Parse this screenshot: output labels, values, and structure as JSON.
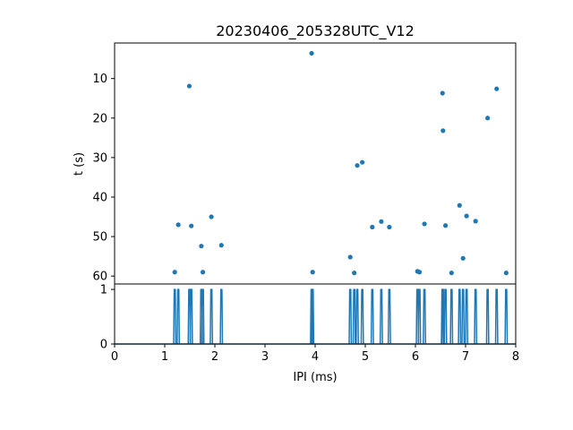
{
  "chart_data": [
    {
      "type": "scatter",
      "title": "20230406_205328UTC_V12",
      "xlabel": "",
      "ylabel": "t (s)",
      "xlim": [
        0,
        8
      ],
      "ylim": [
        62,
        1
      ],
      "y_inverted": true,
      "yticks": [
        10,
        20,
        30,
        40,
        50,
        60
      ],
      "grid": false,
      "marker_color": "#1f77b4",
      "points": [
        {
          "x": 1.2,
          "y": 59.0
        },
        {
          "x": 1.27,
          "y": 47.0
        },
        {
          "x": 1.49,
          "y": 11.9
        },
        {
          "x": 1.53,
          "y": 47.3
        },
        {
          "x": 1.73,
          "y": 52.4
        },
        {
          "x": 1.76,
          "y": 59.0
        },
        {
          "x": 1.93,
          "y": 45.0
        },
        {
          "x": 2.13,
          "y": 52.2
        },
        {
          "x": 3.93,
          "y": 3.6
        },
        {
          "x": 3.95,
          "y": 59.0
        },
        {
          "x": 4.7,
          "y": 55.2
        },
        {
          "x": 4.78,
          "y": 59.2
        },
        {
          "x": 4.84,
          "y": 32.0
        },
        {
          "x": 4.94,
          "y": 31.2
        },
        {
          "x": 5.14,
          "y": 47.6
        },
        {
          "x": 5.32,
          "y": 46.2
        },
        {
          "x": 5.48,
          "y": 47.6
        },
        {
          "x": 6.04,
          "y": 58.8
        },
        {
          "x": 6.08,
          "y": 59.0
        },
        {
          "x": 6.18,
          "y": 46.8
        },
        {
          "x": 6.54,
          "y": 13.7
        },
        {
          "x": 6.55,
          "y": 23.2
        },
        {
          "x": 6.6,
          "y": 47.2
        },
        {
          "x": 6.72,
          "y": 59.2
        },
        {
          "x": 6.88,
          "y": 42.1
        },
        {
          "x": 6.95,
          "y": 55.5
        },
        {
          "x": 7.02,
          "y": 44.8
        },
        {
          "x": 7.2,
          "y": 46.1
        },
        {
          "x": 7.44,
          "y": 20.0
        },
        {
          "x": 7.62,
          "y": 12.6
        },
        {
          "x": 7.81,
          "y": 59.2
        }
      ]
    },
    {
      "type": "line",
      "title": "",
      "xlabel": "IPI (ms)",
      "ylabel": "",
      "xlim": [
        0,
        8
      ],
      "ylim": [
        0,
        1.1
      ],
      "xticks": [
        0,
        1,
        2,
        3,
        4,
        5,
        6,
        7,
        8
      ],
      "yticks": [
        0,
        1
      ],
      "grid": false,
      "line_color": "#1f77b4",
      "spike_positions": [
        1.2,
        1.27,
        1.49,
        1.53,
        1.73,
        1.76,
        1.93,
        2.13,
        3.93,
        3.95,
        4.7,
        4.78,
        4.84,
        4.94,
        5.14,
        5.32,
        5.48,
        6.04,
        6.08,
        6.18,
        6.54,
        6.55,
        6.6,
        6.72,
        6.88,
        6.95,
        7.02,
        7.2,
        7.44,
        7.62,
        7.81
      ],
      "spike_value": 1
    }
  ]
}
